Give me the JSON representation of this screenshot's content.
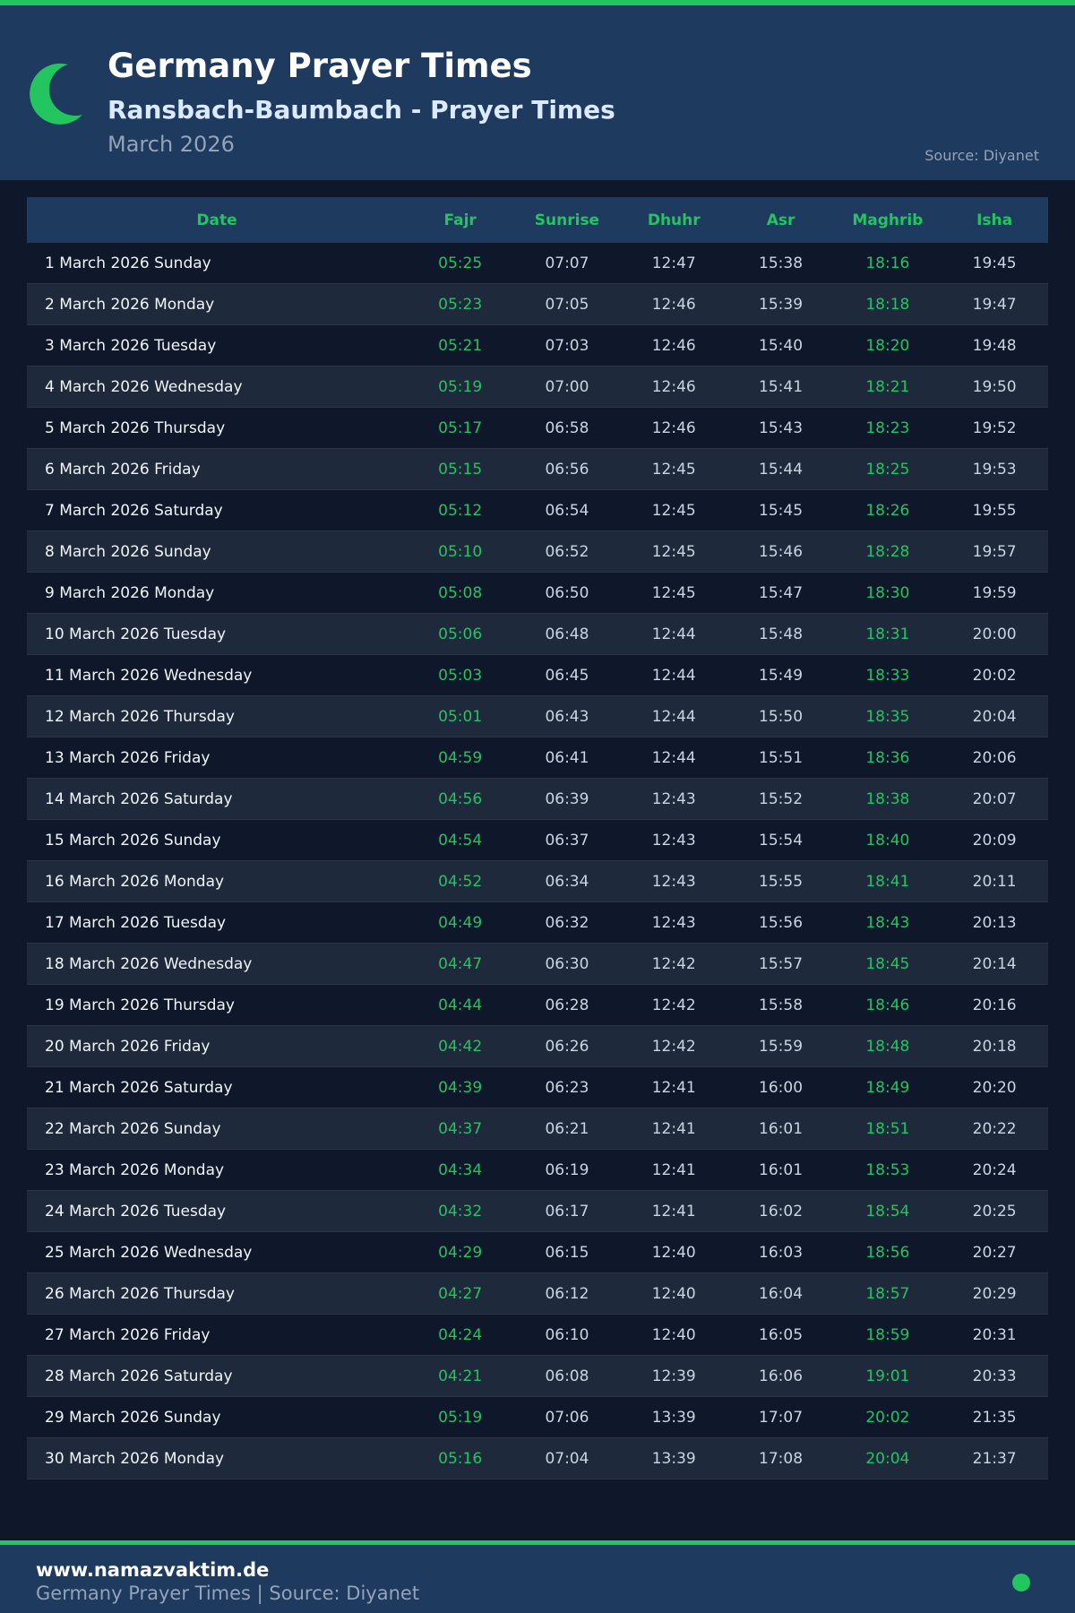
{
  "header": {
    "title": "Germany Prayer Times",
    "subtitle": "Ransbach-Baumbach - Prayer Times",
    "month": "March 2026",
    "source": "Source: Diyanet",
    "icon": "crescent-moon-icon"
  },
  "colors": {
    "accent": "#22c55e",
    "header_bg": "#1e3a5f",
    "page_bg": "#0f172a"
  },
  "table": {
    "columns": [
      "Date",
      "Fajr",
      "Sunrise",
      "Dhuhr",
      "Asr",
      "Maghrib",
      "Isha"
    ],
    "rows": [
      [
        "1 March 2026 Sunday",
        "05:25",
        "07:07",
        "12:47",
        "15:38",
        "18:16",
        "19:45"
      ],
      [
        "2 March 2026 Monday",
        "05:23",
        "07:05",
        "12:46",
        "15:39",
        "18:18",
        "19:47"
      ],
      [
        "3 March 2026 Tuesday",
        "05:21",
        "07:03",
        "12:46",
        "15:40",
        "18:20",
        "19:48"
      ],
      [
        "4 March 2026 Wednesday",
        "05:19",
        "07:00",
        "12:46",
        "15:41",
        "18:21",
        "19:50"
      ],
      [
        "5 March 2026 Thursday",
        "05:17",
        "06:58",
        "12:46",
        "15:43",
        "18:23",
        "19:52"
      ],
      [
        "6 March 2026 Friday",
        "05:15",
        "06:56",
        "12:45",
        "15:44",
        "18:25",
        "19:53"
      ],
      [
        "7 March 2026 Saturday",
        "05:12",
        "06:54",
        "12:45",
        "15:45",
        "18:26",
        "19:55"
      ],
      [
        "8 March 2026 Sunday",
        "05:10",
        "06:52",
        "12:45",
        "15:46",
        "18:28",
        "19:57"
      ],
      [
        "9 March 2026 Monday",
        "05:08",
        "06:50",
        "12:45",
        "15:47",
        "18:30",
        "19:59"
      ],
      [
        "10 March 2026 Tuesday",
        "05:06",
        "06:48",
        "12:44",
        "15:48",
        "18:31",
        "20:00"
      ],
      [
        "11 March 2026 Wednesday",
        "05:03",
        "06:45",
        "12:44",
        "15:49",
        "18:33",
        "20:02"
      ],
      [
        "12 March 2026 Thursday",
        "05:01",
        "06:43",
        "12:44",
        "15:50",
        "18:35",
        "20:04"
      ],
      [
        "13 March 2026 Friday",
        "04:59",
        "06:41",
        "12:44",
        "15:51",
        "18:36",
        "20:06"
      ],
      [
        "14 March 2026 Saturday",
        "04:56",
        "06:39",
        "12:43",
        "15:52",
        "18:38",
        "20:07"
      ],
      [
        "15 March 2026 Sunday",
        "04:54",
        "06:37",
        "12:43",
        "15:54",
        "18:40",
        "20:09"
      ],
      [
        "16 March 2026 Monday",
        "04:52",
        "06:34",
        "12:43",
        "15:55",
        "18:41",
        "20:11"
      ],
      [
        "17 March 2026 Tuesday",
        "04:49",
        "06:32",
        "12:43",
        "15:56",
        "18:43",
        "20:13"
      ],
      [
        "18 March 2026 Wednesday",
        "04:47",
        "06:30",
        "12:42",
        "15:57",
        "18:45",
        "20:14"
      ],
      [
        "19 March 2026 Thursday",
        "04:44",
        "06:28",
        "12:42",
        "15:58",
        "18:46",
        "20:16"
      ],
      [
        "20 March 2026 Friday",
        "04:42",
        "06:26",
        "12:42",
        "15:59",
        "18:48",
        "20:18"
      ],
      [
        "21 March 2026 Saturday",
        "04:39",
        "06:23",
        "12:41",
        "16:00",
        "18:49",
        "20:20"
      ],
      [
        "22 March 2026 Sunday",
        "04:37",
        "06:21",
        "12:41",
        "16:01",
        "18:51",
        "20:22"
      ],
      [
        "23 March 2026 Monday",
        "04:34",
        "06:19",
        "12:41",
        "16:01",
        "18:53",
        "20:24"
      ],
      [
        "24 March 2026 Tuesday",
        "04:32",
        "06:17",
        "12:41",
        "16:02",
        "18:54",
        "20:25"
      ],
      [
        "25 March 2026 Wednesday",
        "04:29",
        "06:15",
        "12:40",
        "16:03",
        "18:56",
        "20:27"
      ],
      [
        "26 March 2026 Thursday",
        "04:27",
        "06:12",
        "12:40",
        "16:04",
        "18:57",
        "20:29"
      ],
      [
        "27 March 2026 Friday",
        "04:24",
        "06:10",
        "12:40",
        "16:05",
        "18:59",
        "20:31"
      ],
      [
        "28 March 2026 Saturday",
        "04:21",
        "06:08",
        "12:39",
        "16:06",
        "19:01",
        "20:33"
      ],
      [
        "29 March 2026 Sunday",
        "05:19",
        "07:06",
        "13:39",
        "17:07",
        "20:02",
        "21:35"
      ],
      [
        "30 March 2026 Monday",
        "05:16",
        "07:04",
        "13:39",
        "17:08",
        "20:04",
        "21:37"
      ]
    ]
  },
  "footer": {
    "site": "www.namazvaktim.de",
    "text": "Germany Prayer Times | Source: Diyanet"
  }
}
